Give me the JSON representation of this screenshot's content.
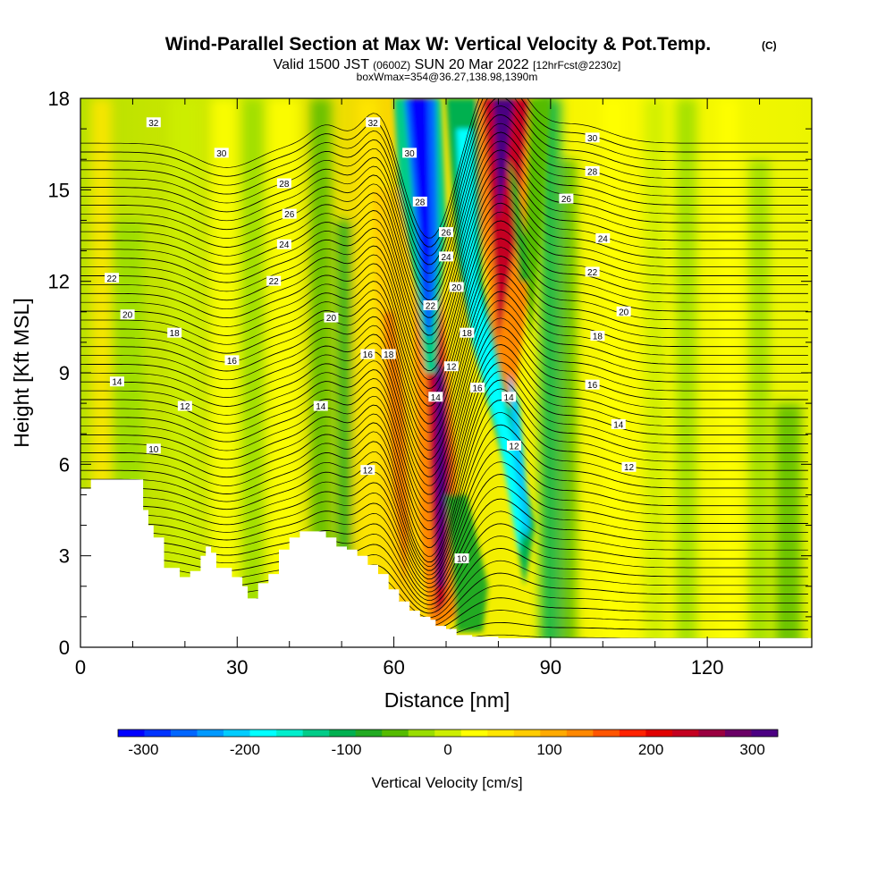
{
  "title": {
    "main": "Wind-Parallel Section at Max W: Vertical Velocity & Pot.Temp.",
    "copyright": "(C)",
    "valid_prefix": "Valid 1500 JST",
    "valid_zulu": "(0600Z)",
    "valid_date": "SUN 20 Mar 2022",
    "forecast": "[12hrFcst@2230z]",
    "box_info": "boxWmax=354@36.27,138.98,1390m"
  },
  "colors": {
    "background": "#ffffff",
    "terrain": "#ffffff",
    "contour": "#000000",
    "colorbar": [
      "#0000ff",
      "#0033ff",
      "#0066ff",
      "#0099ff",
      "#00ccff",
      "#00ffff",
      "#00eecc",
      "#00cc88",
      "#00b050",
      "#22aa22",
      "#55bb00",
      "#99dd00",
      "#ccee00",
      "#ffff00",
      "#ffe600",
      "#ffcc00",
      "#ffaa00",
      "#ff8800",
      "#ff5500",
      "#ff2200",
      "#e00000",
      "#c40020",
      "#9a0040",
      "#6a0066",
      "#4b0082"
    ]
  },
  "chart_data": {
    "type": "heatmap",
    "xlabel": "Distance [nm]",
    "ylabel": "Height [Kft MSL]",
    "xlim": [
      0,
      140
    ],
    "ylim": [
      0,
      18
    ],
    "xticks": [
      "0",
      "30",
      "60",
      "90",
      "120"
    ],
    "yticks": [
      "0",
      "3",
      "6",
      "9",
      "12",
      "15",
      "18"
    ],
    "colorbar": {
      "label": "Vertical Velocity [cm/s]",
      "range": [
        -325,
        325
      ],
      "ticks": [
        "-300",
        "-200",
        "-100",
        "0",
        "100",
        "200",
        "300"
      ]
    },
    "velocity_features": [
      {
        "name": "downdraft-core",
        "x": [
          61,
          69
        ],
        "y": [
          8,
          18
        ],
        "value": -300
      },
      {
        "name": "downdraft-secondary",
        "x": [
          72,
          86
        ],
        "y": [
          3,
          17
        ],
        "value": -200
      },
      {
        "name": "updraft-core",
        "x": [
          66,
          71
        ],
        "y": [
          1,
          12
        ],
        "value": 300
      },
      {
        "name": "updraft-upper",
        "x": [
          75,
          90
        ],
        "y": [
          8,
          18
        ],
        "value": 250
      }
    ],
    "terrain_profile": {
      "x": [
        0,
        2,
        7,
        12,
        13,
        14,
        16,
        18,
        19,
        21,
        23,
        24,
        25,
        26,
        29,
        31,
        32,
        34,
        36,
        38,
        40,
        42,
        45,
        47,
        49,
        51,
        53,
        55,
        57,
        59,
        61,
        63,
        65,
        67,
        68,
        70,
        72,
        75,
        80,
        100,
        120,
        140
      ],
      "height_kft": [
        5.2,
        5.5,
        5.5,
        4.5,
        4.0,
        3.6,
        2.6,
        2.6,
        2.3,
        2.5,
        3.0,
        3.3,
        3.1,
        2.6,
        2.3,
        2.0,
        1.6,
        2.1,
        2.4,
        3.2,
        3.6,
        3.8,
        3.8,
        3.6,
        3.3,
        3.2,
        3.0,
        2.7,
        2.4,
        1.9,
        1.5,
        1.2,
        1.0,
        0.9,
        0.7,
        0.6,
        0.4,
        0.35,
        0.3,
        0.3,
        0.3,
        0.3
      ]
    },
    "theta_contour_labels": [
      {
        "text": "32",
        "x": 14,
        "y": 17.2
      },
      {
        "text": "30",
        "x": 27,
        "y": 16.2
      },
      {
        "text": "28",
        "x": 39,
        "y": 15.2
      },
      {
        "text": "26",
        "x": 40,
        "y": 14.2
      },
      {
        "text": "24",
        "x": 39,
        "y": 13.2
      },
      {
        "text": "22",
        "x": 6,
        "y": 12.1
      },
      {
        "text": "22",
        "x": 37,
        "y": 12.0
      },
      {
        "text": "20",
        "x": 9,
        "y": 10.9
      },
      {
        "text": "20",
        "x": 48,
        "y": 10.8
      },
      {
        "text": "18",
        "x": 18,
        "y": 10.3
      },
      {
        "text": "16",
        "x": 29,
        "y": 9.4
      },
      {
        "text": "14",
        "x": 7,
        "y": 8.7
      },
      {
        "text": "12",
        "x": 20,
        "y": 7.9
      },
      {
        "text": "14",
        "x": 46,
        "y": 7.9
      },
      {
        "text": "10",
        "x": 14,
        "y": 6.5
      },
      {
        "text": "12",
        "x": 55,
        "y": 5.8
      },
      {
        "text": "32",
        "x": 56,
        "y": 17.2
      },
      {
        "text": "30",
        "x": 63,
        "y": 16.2
      },
      {
        "text": "28",
        "x": 65,
        "y": 14.6
      },
      {
        "text": "26",
        "x": 70,
        "y": 13.6
      },
      {
        "text": "24",
        "x": 70,
        "y": 12.8
      },
      {
        "text": "20",
        "x": 72,
        "y": 11.8
      },
      {
        "text": "22",
        "x": 67,
        "y": 11.2
      },
      {
        "text": "18",
        "x": 59,
        "y": 9.6
      },
      {
        "text": "16",
        "x": 55,
        "y": 9.6
      },
      {
        "text": "18",
        "x": 74,
        "y": 10.3
      },
      {
        "text": "12",
        "x": 71,
        "y": 9.2
      },
      {
        "text": "16",
        "x": 76,
        "y": 8.5
      },
      {
        "text": "14",
        "x": 68,
        "y": 8.2
      },
      {
        "text": "14",
        "x": 82,
        "y": 8.2
      },
      {
        "text": "12",
        "x": 83,
        "y": 6.6
      },
      {
        "text": "10",
        "x": 73,
        "y": 2.9
      },
      {
        "text": "30",
        "x": 98,
        "y": 16.7
      },
      {
        "text": "28",
        "x": 98,
        "y": 15.6
      },
      {
        "text": "26",
        "x": 93,
        "y": 14.7
      },
      {
        "text": "24",
        "x": 100,
        "y": 13.4
      },
      {
        "text": "22",
        "x": 98,
        "y": 12.3
      },
      {
        "text": "20",
        "x": 104,
        "y": 11.0
      },
      {
        "text": "18",
        "x": 99,
        "y": 10.2
      },
      {
        "text": "16",
        "x": 98,
        "y": 8.6
      },
      {
        "text": "14",
        "x": 103,
        "y": 7.3
      },
      {
        "text": "12",
        "x": 105,
        "y": 5.9
      }
    ]
  }
}
